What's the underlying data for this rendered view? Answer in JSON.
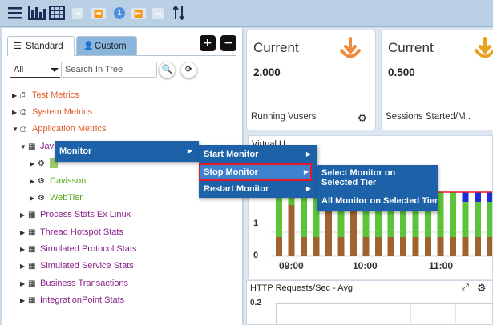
{
  "toolbar": {
    "icons": [
      "menu-icon",
      "bar-chart-icon",
      "table-icon",
      "first-page-icon",
      "prev-page-icon",
      "next-page-icon",
      "last-page-icon",
      "sort-icon"
    ],
    "page_number": "1"
  },
  "left_panel": {
    "tabs": [
      {
        "label": "Standard",
        "icon": "list-icon",
        "active": true
      },
      {
        "label": "Custom",
        "icon": "user-plus-icon",
        "active": false
      }
    ],
    "filter_value": "All",
    "search_placeholder": "Search In Tree",
    "tree": [
      {
        "label": "Test Metrics",
        "color": "#e05a2b",
        "icon": "printer-icon"
      },
      {
        "label": "System Metrics",
        "color": "#e05a2b",
        "icon": "printer-icon"
      },
      {
        "label": "Application Metrics",
        "color": "#e05a2b",
        "icon": "printer-icon",
        "expanded": true
      },
      {
        "label": "Jav",
        "color": "#8a1f8a",
        "icon": "grid-icon",
        "expanded": true
      },
      {
        "label": "",
        "color": "#58a818",
        "icon": "cogs-icon"
      },
      {
        "label": "Cavisson",
        "color": "#58a818",
        "icon": "cogs-icon"
      },
      {
        "label": "WebTier",
        "color": "#58a818",
        "icon": "cogs-icon"
      },
      {
        "label": "Process Stats Ex Linux",
        "color": "#8a1f8a",
        "icon": "grid-icon"
      },
      {
        "label": "Thread Hotspot Stats",
        "color": "#8a1f8a",
        "icon": "grid-icon"
      },
      {
        "label": "Simulated Protocol Stats",
        "color": "#8a1f8a",
        "icon": "grid-icon"
      },
      {
        "label": "Simulated Service Stats",
        "color": "#8a1f8a",
        "icon": "grid-icon"
      },
      {
        "label": "Business Transactions",
        "color": "#8a1f8a",
        "icon": "grid-icon"
      },
      {
        "label": "IntegrationPoint Stats",
        "color": "#8a1f8a",
        "icon": "grid-icon"
      }
    ]
  },
  "cards": [
    {
      "title": "Current",
      "value": "2.000",
      "label": "Running Vusers",
      "icon": "download-arrow-icon"
    },
    {
      "title": "Current",
      "value": "0.500",
      "label": "Sessions Started/M..",
      "icon": "download-arrow-icon"
    }
  ],
  "chart1": {
    "title_partial": "Virtual U..",
    "chart_data": {
      "type": "bar",
      "x_tick_labels": [
        "09:00",
        "10:00",
        "11:00"
      ],
      "y_tick_labels": [
        "0",
        "1"
      ],
      "series_colors": [
        "#5cc43a",
        "#a0622e",
        "#1f2ad8"
      ],
      "threshold_color": "#e4182c"
    }
  },
  "chart2": {
    "title": "HTTP Requests/Sec - Avg",
    "y_tick_label": "0.2"
  },
  "context_menu": {
    "level1": [
      {
        "label": "Monitor"
      }
    ],
    "level2": [
      {
        "label": "Start Monitor"
      },
      {
        "label": "Stop Monitor",
        "highlighted": true
      },
      {
        "label": "Restart Monitor"
      }
    ],
    "level3": [
      {
        "label": "Select Monitor on Selected Tier"
      },
      {
        "label": "All Monitor on Selected Tier"
      }
    ]
  }
}
